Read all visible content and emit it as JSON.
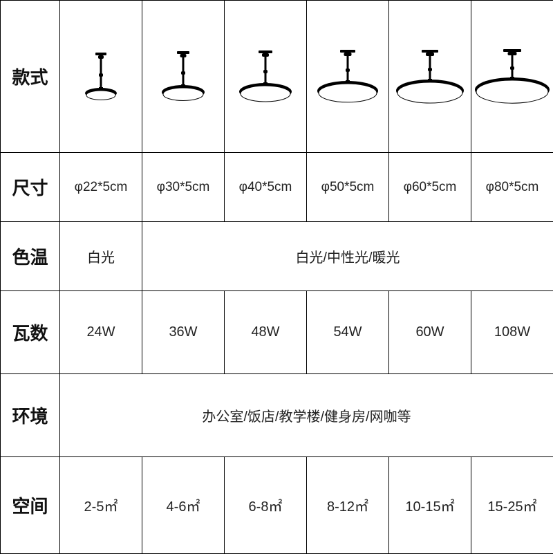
{
  "labels": {
    "style": "款式",
    "size": "尺寸",
    "color_temp": "色温",
    "wattage": "瓦数",
    "environment": "环境",
    "space": "空间"
  },
  "columns": 6,
  "lamp_sizes": [
    48,
    64,
    78,
    90,
    100,
    110
  ],
  "lamp_mount_widths": [
    16,
    18,
    20,
    22,
    24,
    26
  ],
  "lamp_rod_heights": [
    42,
    40,
    38,
    36,
    34,
    32
  ],
  "sizes": [
    "φ22*5cm",
    "φ30*5cm",
    "φ40*5cm",
    "φ50*5cm",
    "φ60*5cm",
    "φ80*5cm"
  ],
  "color_temp_first": "白光",
  "color_temp_rest": "白光/中性光/暖光",
  "wattage": [
    "24W",
    "36W",
    "48W",
    "54W",
    "60W",
    "108W"
  ],
  "environment": "办公室/饭店/教学楼/健身房/网咖等",
  "space": [
    "2-5㎡",
    "4-6㎡",
    "6-8㎡",
    "8-12㎡",
    "10-15㎡",
    "15-25㎡"
  ],
  "row_heights": {
    "style": 220,
    "size": 100,
    "color_temp": 100,
    "wattage": 120,
    "environment": 120,
    "space": 140
  },
  "label_col_width": 86,
  "data_col_width": 119,
  "colors": {
    "border": "#000000",
    "bg": "#ffffff",
    "label_text": "#111111",
    "data_text": "#222222",
    "lamp": "#000000",
    "disc_fill": "#ffffff"
  },
  "font": {
    "label_size": 26,
    "label_weight": 700,
    "data_size": 20
  }
}
